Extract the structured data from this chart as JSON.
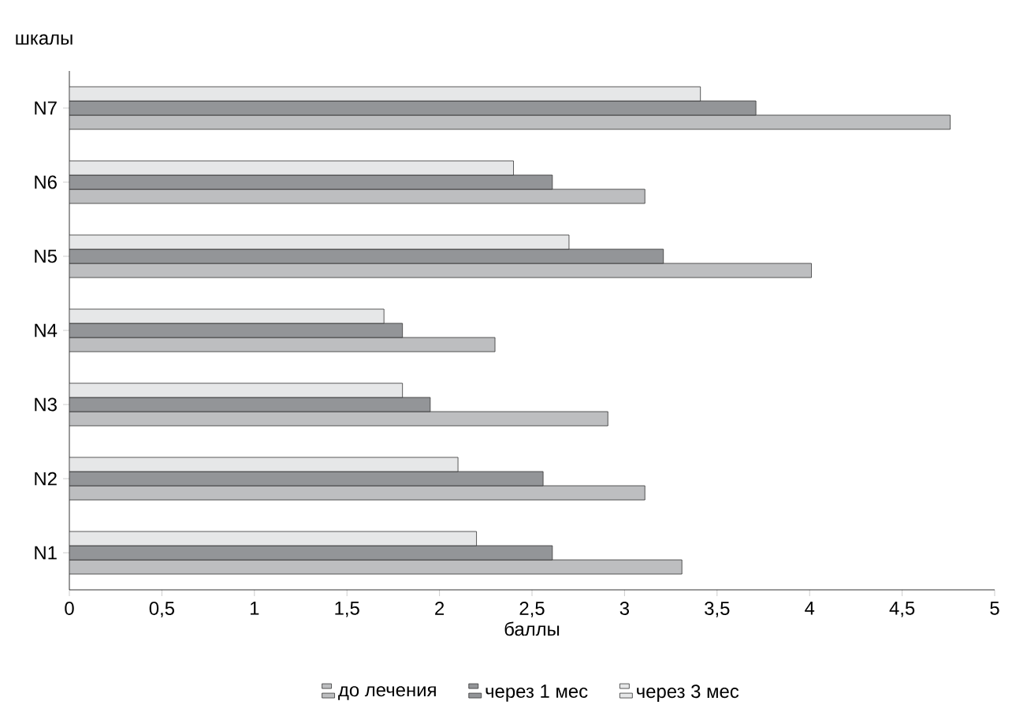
{
  "chart_data": {
    "type": "bar",
    "orientation": "horizontal",
    "xlabel": "баллы",
    "ylabel": "шкалы",
    "legend": "bottom",
    "categories": [
      "N7",
      "N6",
      "N5",
      "N4",
      "N3",
      "N2",
      "N1"
    ],
    "series": [
      {
        "name": "до лечения",
        "color": "#bdbec0",
        "values": [
          4.76,
          3.11,
          4.01,
          2.3,
          2.91,
          3.11,
          3.31
        ]
      },
      {
        "name": "через 1 мес",
        "color": "#939598",
        "values": [
          3.71,
          2.61,
          3.21,
          1.8,
          1.95,
          2.56,
          2.61
        ]
      },
      {
        "name": "через 3 мес",
        "color": "#e6e7e8",
        "values": [
          3.41,
          2.4,
          2.7,
          1.7,
          1.8,
          2.1,
          2.2
        ]
      }
    ],
    "xlim": [
      0,
      5
    ],
    "xticks": [
      0,
      {
        "value": 0.5,
        "label": "0,5"
      },
      1,
      {
        "value": 1.5,
        "label": "1,5"
      },
      2,
      {
        "value": 2.5,
        "label": "2,5"
      },
      3,
      {
        "value": 3.5,
        "label": "3,5"
      },
      4,
      {
        "value": 4.5,
        "label": "4,5"
      },
      5
    ]
  }
}
